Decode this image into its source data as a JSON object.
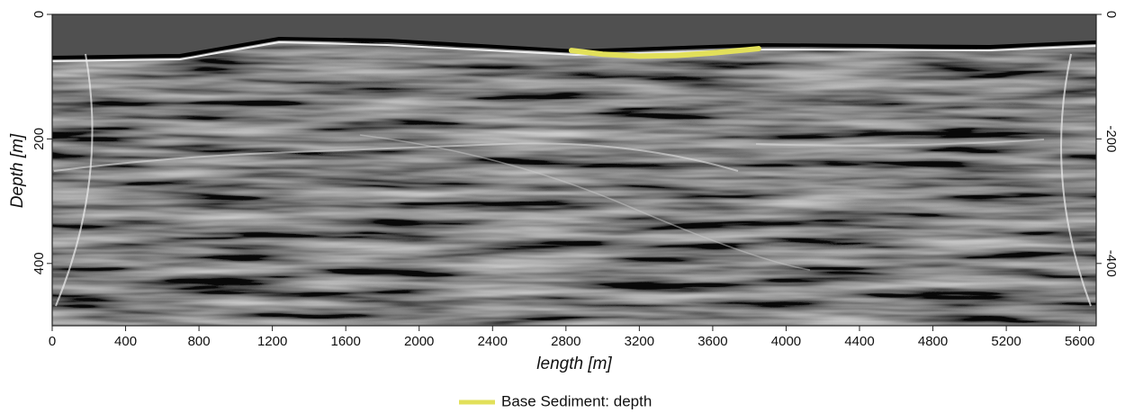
{
  "chart_data": {
    "type": "line",
    "x_label": "length [m]",
    "y_label": "Depth [m]",
    "xlim": [
      0,
      5690
    ],
    "xticks": [
      0,
      400,
      800,
      1200,
      1600,
      2000,
      2400,
      2800,
      3200,
      3600,
      4000,
      4400,
      4800,
      5200,
      5600
    ],
    "ylim": [
      500,
      0
    ],
    "yticks": [
      0,
      200,
      400
    ],
    "y2lim": [
      -500,
      0
    ],
    "y2ticks": [
      0,
      -200,
      -400
    ],
    "x": [
      2830,
      3000,
      3200,
      3400,
      3600,
      3850
    ],
    "series": [
      {
        "name": "Base Sediment: depth",
        "color": "#e2e05a",
        "values": [
          58,
          64,
          67,
          66,
          62,
          55
        ]
      }
    ],
    "legend": "bottom"
  }
}
